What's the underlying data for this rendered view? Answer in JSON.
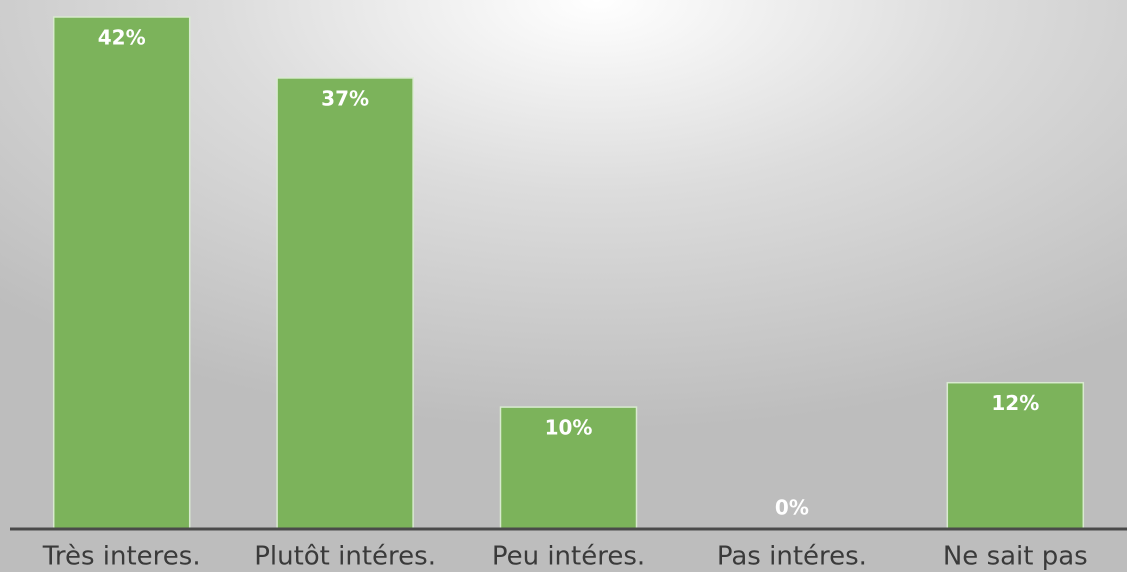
{
  "chart_data": {
    "type": "bar",
    "categories": [
      "Très interes.",
      "Plutôt intéres.",
      "Peu intéres.",
      "Pas intéres.",
      "Ne sait pas"
    ],
    "values": [
      42,
      37,
      10,
      0,
      12
    ],
    "value_labels": [
      "42%",
      "37%",
      "10%",
      "0%",
      "12%"
    ],
    "color": "#7cb35b"
  }
}
